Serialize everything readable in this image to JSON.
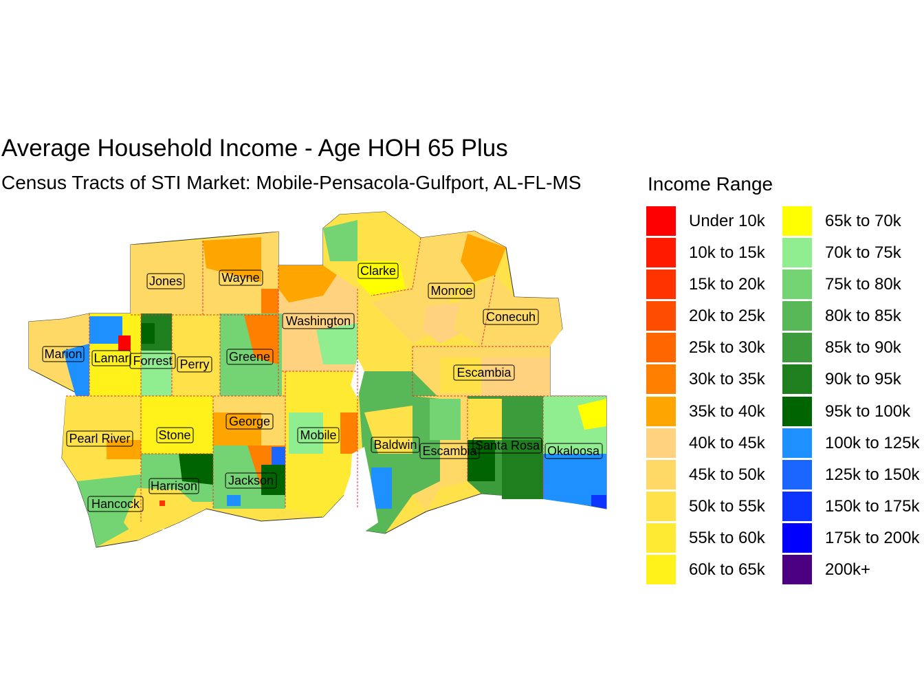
{
  "title": "Average Household Income - Age HOH 65 Plus",
  "subtitle": "Census Tracts of STI Market: Mobile-Pensacola-Gulfport, AL-FL-MS",
  "legend": {
    "title": "Income Range",
    "items": [
      {
        "label": "Under 10k",
        "color": "#FF0000"
      },
      {
        "label": "10k to 15k",
        "color": "#FF1A00"
      },
      {
        "label": "15k to 20k",
        "color": "#FF3300"
      },
      {
        "label": "20k to 25k",
        "color": "#FF4D00"
      },
      {
        "label": "25k to 30k",
        "color": "#FF6600"
      },
      {
        "label": "30k to 35k",
        "color": "#FF8000"
      },
      {
        "label": "35k to 40k",
        "color": "#FFA500"
      },
      {
        "label": "40k to 45k",
        "color": "#FFD280"
      },
      {
        "label": "45k to 50k",
        "color": "#FFD966"
      },
      {
        "label": "50k to 55k",
        "color": "#FFE24A"
      },
      {
        "label": "55k to 60k",
        "color": "#FFEA33"
      },
      {
        "label": "60k to 65k",
        "color": "#FFF21A"
      },
      {
        "label": "65k to 70k",
        "color": "#FFFF00"
      },
      {
        "label": "70k to 75k",
        "color": "#90EE90"
      },
      {
        "label": "75k to 80k",
        "color": "#74D474"
      },
      {
        "label": "80k to 85k",
        "color": "#58B858"
      },
      {
        "label": "85k to 90k",
        "color": "#3C9C3C"
      },
      {
        "label": "90k to 95k",
        "color": "#1F7F1F"
      },
      {
        "label": "95k to 100k",
        "color": "#006400"
      },
      {
        "label": "100k to 125k",
        "color": "#1E90FF"
      },
      {
        "label": "125k to 150k",
        "color": "#1A66FF"
      },
      {
        "label": "150k to 175k",
        "color": "#0D33FF"
      },
      {
        "label": "175k to 200k",
        "color": "#0000FF"
      },
      {
        "label": "200k+",
        "color": "#4B0082"
      }
    ]
  },
  "counties": [
    {
      "name": "Jones",
      "fill": "#FFD966"
    },
    {
      "name": "Wayne",
      "fill": "#FFD966"
    },
    {
      "name": "Clarke",
      "fill": "#FFE24A"
    },
    {
      "name": "Monroe",
      "fill": "#FFD966"
    },
    {
      "name": "Washington",
      "fill": "#FFD280"
    },
    {
      "name": "Conecuh",
      "fill": "#FFD966"
    },
    {
      "name": "Marion",
      "fill": "#FFD966"
    },
    {
      "name": "Lamar",
      "fill": "#FFF21A"
    },
    {
      "name": "Forrest",
      "fill": "#90EE90"
    },
    {
      "name": "Perry",
      "fill": "#FFE24A"
    },
    {
      "name": "Greene",
      "fill": "#74D474"
    },
    {
      "name": "Escambia",
      "fill": "#FFD966"
    },
    {
      "name": "Pearl River",
      "fill": "#FFE24A"
    },
    {
      "name": "Stone",
      "fill": "#FFF21A"
    },
    {
      "name": "George",
      "fill": "#FFA500"
    },
    {
      "name": "Mobile",
      "fill": "#FFEA33"
    },
    {
      "name": "Baldwin",
      "fill": "#58B858"
    },
    {
      "name": "Escambia",
      "fill": "#FFD966"
    },
    {
      "name": "Santa Rosa",
      "fill": "#3C9C3C"
    },
    {
      "name": "Okaloosa",
      "fill": "#1E90FF"
    },
    {
      "name": "Harrison",
      "fill": "#74D474"
    },
    {
      "name": "Jackson",
      "fill": "#74D474"
    },
    {
      "name": "Hancock",
      "fill": "#74D474"
    }
  ]
}
